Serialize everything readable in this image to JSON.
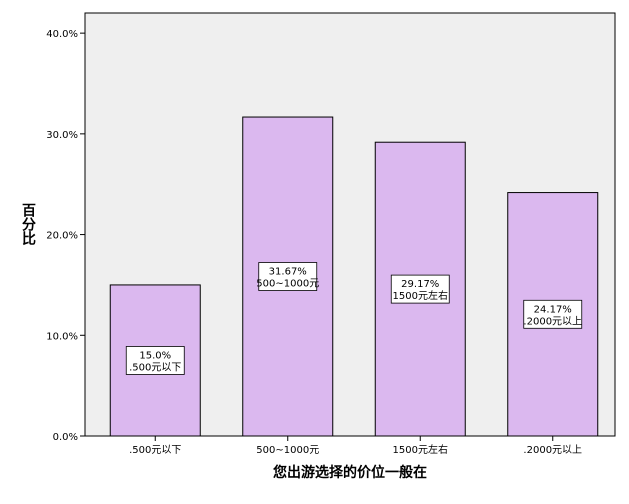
{
  "chart_data": {
    "type": "bar",
    "title": "",
    "xlabel": "您出游选择的价位一般在",
    "ylabel": "百分比",
    "categories": [
      ".500元以下",
      "500~1000元",
      "1500元左右",
      ".2000元以上"
    ],
    "values": [
      15.0,
      31.67,
      29.17,
      24.17
    ],
    "data_labels": [
      [
        "15.0%",
        ".500元以下"
      ],
      [
        "31.67%",
        "500~1000元"
      ],
      [
        "29.17%",
        "1500元左右"
      ],
      [
        "24.17%",
        ".2000元以上"
      ]
    ],
    "yticks": [
      "0.0%",
      "10.0%",
      "20.0%",
      "30.0%",
      "40.0%"
    ],
    "ylim": [
      0,
      42
    ],
    "grid": false,
    "colors": {
      "plot_background": "#efefef",
      "bar_fill": "#dbb8ef",
      "bar_stroke": "#000000"
    }
  }
}
